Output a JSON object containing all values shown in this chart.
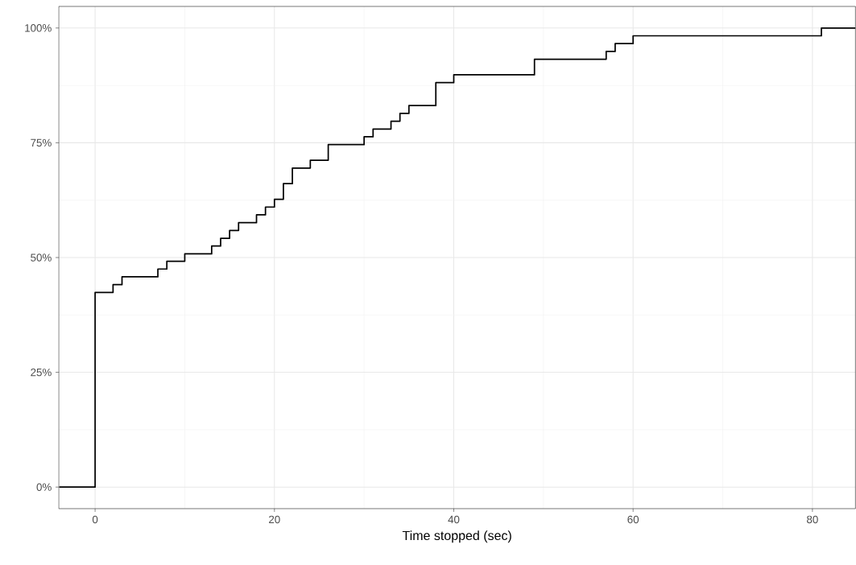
{
  "chart_data": {
    "type": "step",
    "xlabel": "Time stopped (sec)",
    "x": [
      -4,
      0,
      2,
      3,
      7,
      8,
      10,
      13,
      14,
      15,
      16,
      18,
      19,
      20,
      21,
      22,
      24,
      26,
      30,
      31,
      33,
      34,
      35,
      38,
      40,
      49,
      57,
      58,
      60,
      81,
      84.8
    ],
    "series": [
      {
        "color": "#000000",
        "values": [
          0,
          42.4,
          44.1,
          45.8,
          47.5,
          49.2,
          50.8,
          52.5,
          54.2,
          55.9,
          57.6,
          59.3,
          61.0,
          62.7,
          66.1,
          69.5,
          71.2,
          74.6,
          76.3,
          78.0,
          79.7,
          81.4,
          83.1,
          88.1,
          89.8,
          93.2,
          94.9,
          96.6,
          98.3,
          100,
          100
        ]
      }
    ],
    "xlim": [
      -4.05,
      84.8
    ],
    "ylim": [
      -4.7,
      104.7
    ],
    "xticks": [
      0,
      20,
      40,
      60,
      80
    ],
    "yticks": [
      {
        "value": 0,
        "label": "0%"
      },
      {
        "value": 25,
        "label": "25%"
      },
      {
        "value": 50,
        "label": "50%"
      },
      {
        "value": 75,
        "label": "75%"
      },
      {
        "value": 100,
        "label": "100%"
      }
    ],
    "grid": true,
    "marker": "none",
    "line_style": "solid"
  }
}
